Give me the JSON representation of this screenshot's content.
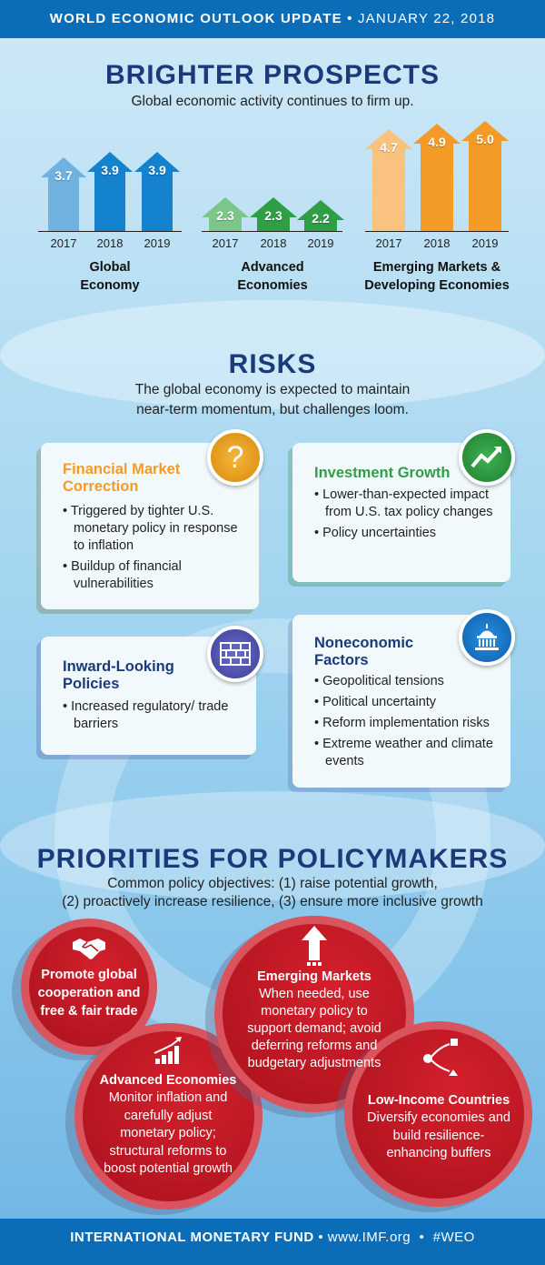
{
  "header": {
    "title": "WORLD ECONOMIC OUTLOOK UPDATE",
    "separator": "•",
    "date": "JANUARY 22, 2018"
  },
  "prospects": {
    "title": "BRIGHTER PROSPECTS",
    "subtitle": "Global economic activity continues to firm up.",
    "groups": [
      {
        "label_line1": "Global",
        "label_line2": "Economy",
        "color_light": "#6fb2df",
        "color_dark": "#1582cf",
        "years": [
          "2017",
          "2018",
          "2019"
        ],
        "values": [
          3.7,
          3.9,
          3.9
        ],
        "value_labels": [
          "3.7",
          "3.9",
          "3.9"
        ]
      },
      {
        "label_line1": "Advanced",
        "label_line2": "Economies",
        "color_light": "#7cc68a",
        "color_dark": "#2f9e46",
        "years": [
          "2017",
          "2018",
          "2019"
        ],
        "values": [
          2.3,
          2.3,
          2.2
        ],
        "value_labels": [
          "2.3",
          "2.3",
          "2.2"
        ]
      },
      {
        "label_line1": "Emerging Markets &",
        "label_line2": "Developing Economies",
        "color_light": "#f9c27e",
        "color_dark": "#f39b26",
        "years": [
          "2017",
          "2018",
          "2019"
        ],
        "values": [
          4.7,
          4.9,
          5.0
        ],
        "value_labels": [
          "4.7",
          "4.9",
          "5.0"
        ]
      }
    ]
  },
  "risks": {
    "title": "RISKS",
    "subtitle_line1": "The global economy is expected to maintain",
    "subtitle_line2": "near-term momentum, but challenges loom.",
    "cards": [
      {
        "title": "Financial Market Correction",
        "icon": "question-icon",
        "color": "#f39b26",
        "items": [
          "Triggered by tighter U.S. monetary policy in response to inflation",
          "Buildup of financial vulnerabilities"
        ]
      },
      {
        "title": "Investment Growth",
        "icon": "trend-up-icon",
        "color": "#2f9e46",
        "items": [
          "Lower-than-expected impact from U.S. tax policy changes",
          "Policy uncertainties"
        ]
      },
      {
        "title": "Inward-Looking Policies",
        "icon": "brick-wall-icon",
        "color": "#1a3a7a",
        "items": [
          "Increased regulatory/ trade barriers"
        ]
      },
      {
        "title": "Noneconomic Factors",
        "icon": "capitol-icon",
        "color": "#1a3a7a",
        "items": [
          "Geopolitical tensions",
          "Political uncertainty",
          "Reform implementation risks",
          "Extreme weather and climate events"
        ]
      }
    ]
  },
  "priorities": {
    "title": "PRIORITIES FOR POLICYMAKERS",
    "subtitle_line1": "Common policy objectives: (1) raise potential growth,",
    "subtitle_line2": "(2) proactively increase resilience, (3) ensure more inclusive growth",
    "circles": [
      {
        "title": "Promote global cooperation and free & fair trade",
        "icon": "handshake-icon",
        "text": ""
      },
      {
        "title": "Advanced Economies",
        "icon": "bar-chart-icon",
        "text": "Monitor inflation and carefully adjust monetary policy; structural reforms to boost potential growth"
      },
      {
        "title": "Emerging Markets",
        "icon": "arrow-up-icon",
        "text": "When needed, use monetary policy to support demand; avoid deferring reforms and budgetary adjustments"
      },
      {
        "title": "Low-Income Countries",
        "icon": "diversify-icon",
        "text": "Diversify economies and build resilience-enhancing buffers"
      }
    ]
  },
  "footer": {
    "org": "INTERNATIONAL MONETARY FUND",
    "sep1": "•",
    "url": "www.IMF.org",
    "sep2": "•",
    "hashtag": "#WEO"
  }
}
